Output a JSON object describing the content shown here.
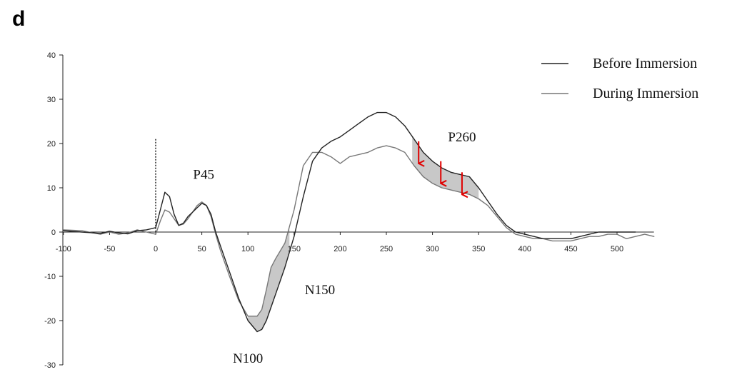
{
  "panel_label": "d",
  "chart_data": {
    "type": "line",
    "title": "",
    "xlabel": "",
    "ylabel": "",
    "xlim": [
      -100,
      540
    ],
    "ylim": [
      -30,
      40
    ],
    "x_ticks": [
      -100,
      -50,
      0,
      50,
      100,
      150,
      200,
      250,
      300,
      350,
      400,
      450,
      500
    ],
    "y_ticks": [
      40,
      30,
      20,
      10,
      0,
      -10,
      -20,
      -30
    ],
    "stimulus_marker_x": 0,
    "stimulus_marker_top": 21,
    "legend_position": "top-right",
    "series": [
      {
        "name": "Before Immersion",
        "color": "#222222",
        "x": [
          -100,
          -80,
          -60,
          -50,
          -40,
          -30,
          -20,
          -10,
          0,
          5,
          10,
          15,
          20,
          25,
          30,
          35,
          40,
          45,
          50,
          55,
          60,
          65,
          70,
          80,
          90,
          100,
          110,
          115,
          120,
          125,
          130,
          140,
          150,
          160,
          170,
          180,
          190,
          200,
          210,
          220,
          230,
          240,
          250,
          260,
          270,
          280,
          290,
          300,
          310,
          320,
          330,
          340,
          350,
          360,
          370,
          380,
          390,
          400,
          410,
          420,
          430,
          440,
          450,
          460,
          470,
          480,
          490,
          500,
          510,
          520
        ],
        "y": [
          0.3,
          0,
          -0.3,
          0.2,
          -0.2,
          -0.4,
          0.3,
          0.5,
          1,
          5,
          9,
          8,
          4,
          1.5,
          2,
          3.5,
          4.5,
          5.5,
          6.5,
          6,
          4,
          0,
          -3,
          -9,
          -15,
          -20,
          -22.5,
          -22,
          -20,
          -17,
          -14,
          -8,
          -1,
          8,
          16,
          19,
          20.5,
          21.5,
          23,
          24.5,
          26,
          27,
          27,
          26,
          24,
          21,
          18,
          16,
          14.5,
          13.5,
          13,
          12.5,
          10,
          7,
          4,
          1.5,
          0,
          -0.5,
          -1,
          -1.5,
          -1.5,
          -1.5,
          -1.5,
          -1,
          -0.5,
          0,
          0,
          0,
          0,
          0
        ]
      },
      {
        "name": "During Immersion",
        "color": "#777777",
        "x": [
          -100,
          -80,
          -60,
          -50,
          -40,
          -30,
          -20,
          -10,
          0,
          5,
          10,
          15,
          20,
          25,
          30,
          35,
          40,
          45,
          50,
          55,
          60,
          65,
          70,
          80,
          90,
          100,
          110,
          115,
          120,
          125,
          130,
          140,
          150,
          160,
          170,
          180,
          190,
          200,
          210,
          220,
          230,
          240,
          250,
          260,
          270,
          280,
          290,
          300,
          310,
          320,
          330,
          340,
          350,
          360,
          370,
          380,
          390,
          400,
          410,
          420,
          430,
          440,
          450,
          460,
          470,
          480,
          490,
          500,
          510,
          520,
          530,
          540
        ],
        "y": [
          0.5,
          0.3,
          -0.5,
          0,
          -0.5,
          -0.2,
          0.5,
          0,
          -0.5,
          2.5,
          5,
          4.5,
          3,
          1.5,
          1.8,
          3,
          4.5,
          6,
          6.8,
          6,
          3.5,
          -0.5,
          -4,
          -10,
          -15.5,
          -19,
          -19,
          -17.5,
          -13,
          -8,
          -6,
          -2.5,
          5,
          15,
          18,
          18,
          17,
          15.5,
          17,
          17.5,
          18,
          19,
          19.5,
          19,
          18,
          15,
          12.5,
          11,
          10,
          9.5,
          9,
          8.5,
          7.5,
          6,
          3.5,
          1,
          -0.5,
          -1,
          -1.5,
          -1.5,
          -2,
          -2,
          -2,
          -1.5,
          -1,
          -1,
          -0.5,
          -0.5,
          -1.5,
          -1,
          -0.5,
          -1
        ]
      }
    ],
    "shaded_regions": [
      {
        "x_start": 100,
        "x_end": 125
      },
      {
        "x_start": 125,
        "x_end": 145
      },
      {
        "x_start": 278,
        "x_end": 350
      }
    ],
    "arrows": [
      {
        "x": 285,
        "y_from": 20.5,
        "y_to": 15.5
      },
      {
        "x": 309,
        "y_from": 16,
        "y_to": 11
      },
      {
        "x": 332,
        "y_from": 13.5,
        "y_to": 8.5
      }
    ],
    "annotations": [
      {
        "text": "P45",
        "x": 52,
        "y": 12
      },
      {
        "text": "N100",
        "x": 100,
        "y": -29.5
      },
      {
        "text": "N150",
        "x": 178,
        "y": -14
      },
      {
        "text": "P260",
        "x": 332,
        "y": 20.5
      }
    ]
  }
}
